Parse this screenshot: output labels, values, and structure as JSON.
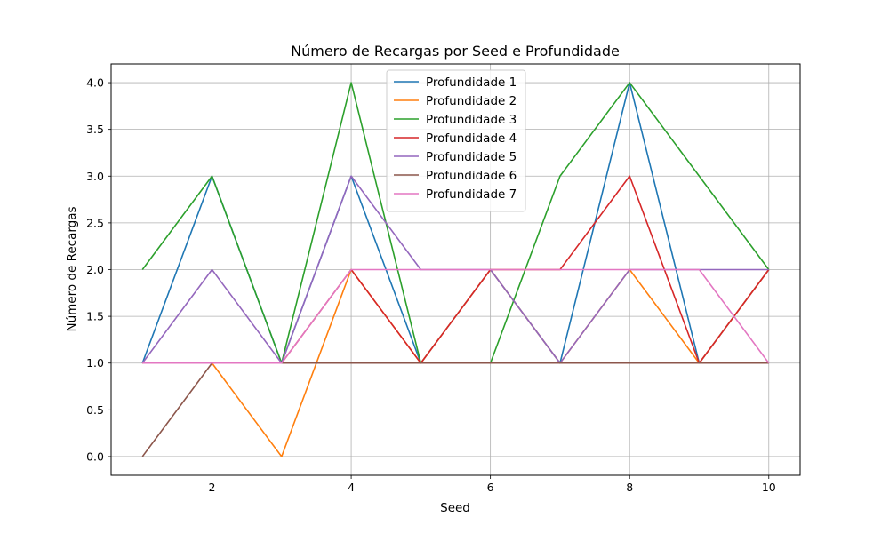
{
  "chart_data": {
    "type": "line",
    "title": "Número de Recargas por Seed e Profundidade",
    "xlabel": "Seed",
    "ylabel": "Número de Recargas",
    "x": [
      1,
      2,
      3,
      4,
      5,
      6,
      7,
      8,
      9,
      10
    ],
    "xlim": [
      0.55,
      10.45
    ],
    "ylim": [
      -0.2,
      4.2
    ],
    "xticks": [
      "2",
      "4",
      "6",
      "8",
      "10"
    ],
    "yticks": [
      "0.0",
      "0.5",
      "1.0",
      "1.5",
      "2.0",
      "2.5",
      "3.0",
      "3.5",
      "4.0"
    ],
    "grid": true,
    "legend_position": "upper-center",
    "series": [
      {
        "name": "Profundidade 1",
        "color": "#1f77b4",
        "values": [
          1,
          3,
          1,
          3,
          1,
          2,
          1,
          4,
          1,
          2
        ]
      },
      {
        "name": "Profundidade 2",
        "color": "#ff7f0e",
        "values": [
          1,
          1,
          0,
          2,
          1,
          2,
          1,
          2,
          1,
          2
        ]
      },
      {
        "name": "Profundidade 3",
        "color": "#2ca02c",
        "values": [
          2,
          3,
          1,
          4,
          1,
          1,
          3,
          4,
          3,
          2
        ]
      },
      {
        "name": "Profundidade 4",
        "color": "#d62728",
        "values": [
          1,
          1,
          1,
          2,
          1,
          2,
          2,
          3,
          1,
          2
        ]
      },
      {
        "name": "Profundidade 5",
        "color": "#9467bd",
        "values": [
          1,
          2,
          1,
          3,
          2,
          2,
          1,
          2,
          2,
          2
        ]
      },
      {
        "name": "Profundidade 6",
        "color": "#8c564b",
        "values": [
          0,
          1,
          1,
          1,
          1,
          1,
          1,
          1,
          1,
          1
        ]
      },
      {
        "name": "Profundidade 7",
        "color": "#e377c2",
        "values": [
          1,
          1,
          1,
          2,
          2,
          2,
          2,
          2,
          2,
          1
        ]
      }
    ]
  }
}
